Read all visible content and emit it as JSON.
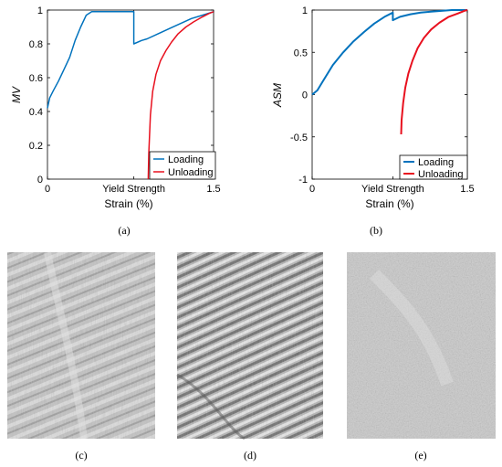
{
  "charts": [
    {
      "type": "line",
      "ylabel": "MV",
      "xlabel": "Strain (%)",
      "xlim": [
        0,
        1.5
      ],
      "ylim": [
        0,
        1
      ],
      "xticks": [
        "0",
        "Yield Strength",
        "1.5"
      ],
      "yticks": [
        "0",
        "0.2",
        "0.4",
        "0.6",
        "0.8",
        "1"
      ],
      "caption": "(a)",
      "legend": {
        "placement": "bottom-right"
      },
      "series": [
        {
          "name": "Loading",
          "color": "#0072BD",
          "x": [
            0,
            0.02,
            0.05,
            0.1,
            0.15,
            0.2,
            0.25,
            0.3,
            0.35,
            0.4,
            0.45,
            0.5,
            0.55,
            0.6,
            0.65,
            0.7,
            0.75,
            0.78,
            0.78,
            0.85,
            0.9,
            1.0,
            1.1,
            1.2,
            1.3,
            1.4,
            1.5
          ],
          "y": [
            0.42,
            0.48,
            0.52,
            0.58,
            0.65,
            0.72,
            0.82,
            0.9,
            0.97,
            0.99,
            0.99,
            0.99,
            0.99,
            0.99,
            0.99,
            0.99,
            0.99,
            0.99,
            0.8,
            0.82,
            0.83,
            0.86,
            0.89,
            0.92,
            0.95,
            0.97,
            0.99
          ]
        },
        {
          "name": "Unloading",
          "color": "#E8101E",
          "x": [
            0.91,
            0.915,
            0.93,
            0.95,
            0.98,
            1.02,
            1.07,
            1.12,
            1.18,
            1.25,
            1.32,
            1.4,
            1.46,
            1.5
          ],
          "y": [
            0,
            0.15,
            0.38,
            0.52,
            0.62,
            0.7,
            0.76,
            0.81,
            0.86,
            0.9,
            0.93,
            0.96,
            0.98,
            0.99
          ]
        }
      ]
    },
    {
      "type": "line",
      "ylabel": "ASM",
      "xlabel": "Strain (%)",
      "xlim": [
        0,
        1.5
      ],
      "ylim": [
        -1,
        1
      ],
      "xticks": [
        "0",
        "Yield Strength",
        "1.5"
      ],
      "yticks": [
        "-1",
        "-0.5",
        "0",
        "0.5",
        "1"
      ],
      "caption": "(b)",
      "legend": {
        "placement": "bottom-right"
      },
      "series": [
        {
          "name": "Loading",
          "color": "#0072BD",
          "x": [
            0,
            0.05,
            0.1,
            0.2,
            0.3,
            0.4,
            0.5,
            0.6,
            0.7,
            0.78,
            0.78,
            0.85,
            0.95,
            1.05,
            1.15,
            1.25,
            1.35,
            1.45,
            1.5
          ],
          "y": [
            0.0,
            0.05,
            0.15,
            0.35,
            0.5,
            0.63,
            0.74,
            0.84,
            0.92,
            0.97,
            0.88,
            0.92,
            0.95,
            0.97,
            0.98,
            0.99,
            1.0,
            1.0,
            1.0
          ]
        },
        {
          "name": "Unloading",
          "color": "#E8101E",
          "x": [
            0.86,
            0.865,
            0.88,
            0.9,
            0.93,
            0.97,
            1.02,
            1.08,
            1.15,
            1.23,
            1.32,
            1.41,
            1.47,
            1.5
          ],
          "y": [
            -0.47,
            -0.3,
            -0.1,
            0.08,
            0.25,
            0.4,
            0.55,
            0.67,
            0.77,
            0.85,
            0.92,
            0.96,
            0.99,
            1.0
          ]
        }
      ]
    }
  ],
  "images": [
    {
      "caption": "(c)"
    },
    {
      "caption": "(d)"
    },
    {
      "caption": "(e)"
    }
  ]
}
